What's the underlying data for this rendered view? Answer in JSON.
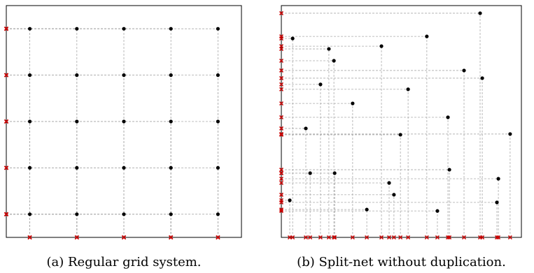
{
  "chart_data": [
    {
      "type": "scatter",
      "title": "(a) Regular grid system.",
      "x": [
        0.1,
        0.3,
        0.5,
        0.7,
        0.9,
        0.1,
        0.3,
        0.5,
        0.7,
        0.9,
        0.1,
        0.3,
        0.5,
        0.7,
        0.9,
        0.1,
        0.3,
        0.5,
        0.7,
        0.9,
        0.1,
        0.3,
        0.5,
        0.7,
        0.9
      ],
      "values": [
        0.9,
        0.9,
        0.9,
        0.9,
        0.9,
        0.7,
        0.7,
        0.7,
        0.7,
        0.7,
        0.5,
        0.5,
        0.5,
        0.5,
        0.5,
        0.3,
        0.3,
        0.3,
        0.3,
        0.3,
        0.1,
        0.1,
        0.1,
        0.1,
        0.1
      ],
      "xlim": [
        0,
        1
      ],
      "ylim": [
        0,
        1
      ],
      "color": "#000000",
      "marker_color": "#cc0000"
    },
    {
      "type": "scatter",
      "title": "(b) Split-net without duplication.",
      "x": [
        0.828,
        0.047,
        0.606,
        0.198,
        0.417,
        0.219,
        0.761,
        0.837,
        0.163,
        0.528,
        0.297,
        0.694,
        0.102,
        0.496,
        0.953,
        0.7,
        0.12,
        0.222,
        0.904,
        0.449,
        0.469,
        0.035,
        0.898,
        0.356,
        0.65
      ],
      "values": [
        0.967,
        0.858,
        0.867,
        0.813,
        0.825,
        0.762,
        0.72,
        0.687,
        0.66,
        0.639,
        0.578,
        0.518,
        0.47,
        0.443,
        0.446,
        0.292,
        0.277,
        0.277,
        0.253,
        0.235,
        0.184,
        0.16,
        0.151,
        0.12,
        0.114
      ],
      "xlim": [
        0,
        1
      ],
      "ylim": [
        0,
        1
      ],
      "color": "#000000",
      "marker_color": "#cc0000"
    }
  ]
}
